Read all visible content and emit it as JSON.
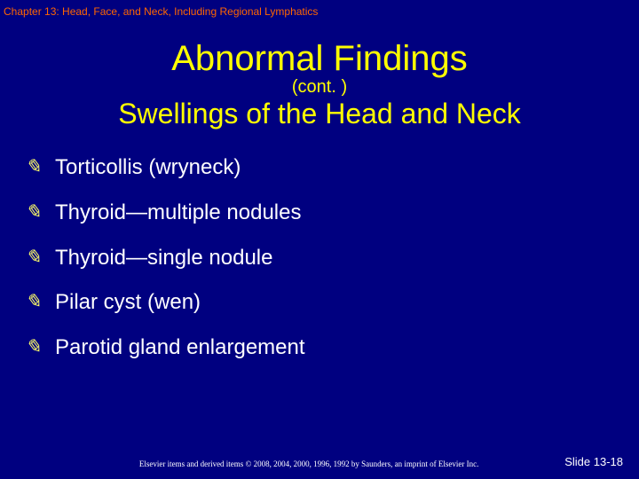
{
  "header": {
    "chapter": "Chapter 13: Head, Face, and Neck, Including Regional Lymphatics"
  },
  "title": {
    "main": "Abnormal Findings",
    "cont": "(cont. )",
    "sub": "Swellings of the Head and Neck"
  },
  "bullets": [
    "Torticollis (wryneck)",
    "Thyroid—multiple nodules",
    "Thyroid—single nodule",
    "Pilar cyst (wen)",
    "Parotid gland enlargement"
  ],
  "footer": {
    "copyright": "Elsevier items and derived items © 2008, 2004, 2000, 1996, 1992 by Saunders, an imprint of Elsevier Inc.",
    "slide": "Slide 13-18"
  },
  "colors": {
    "background": "#000080",
    "header_text": "#ff6600",
    "title_text": "#ffff00",
    "bullet_text": "#ffffff",
    "bullet_icon": "#ffff66",
    "footer_text": "#ffffff"
  },
  "typography": {
    "chapter_fontsize": 12,
    "title_main_fontsize": 40,
    "title_cont_fontsize": 20,
    "title_sub_fontsize": 32,
    "bullet_fontsize": 24,
    "copyright_fontsize": 9,
    "slide_fontsize": 13
  }
}
